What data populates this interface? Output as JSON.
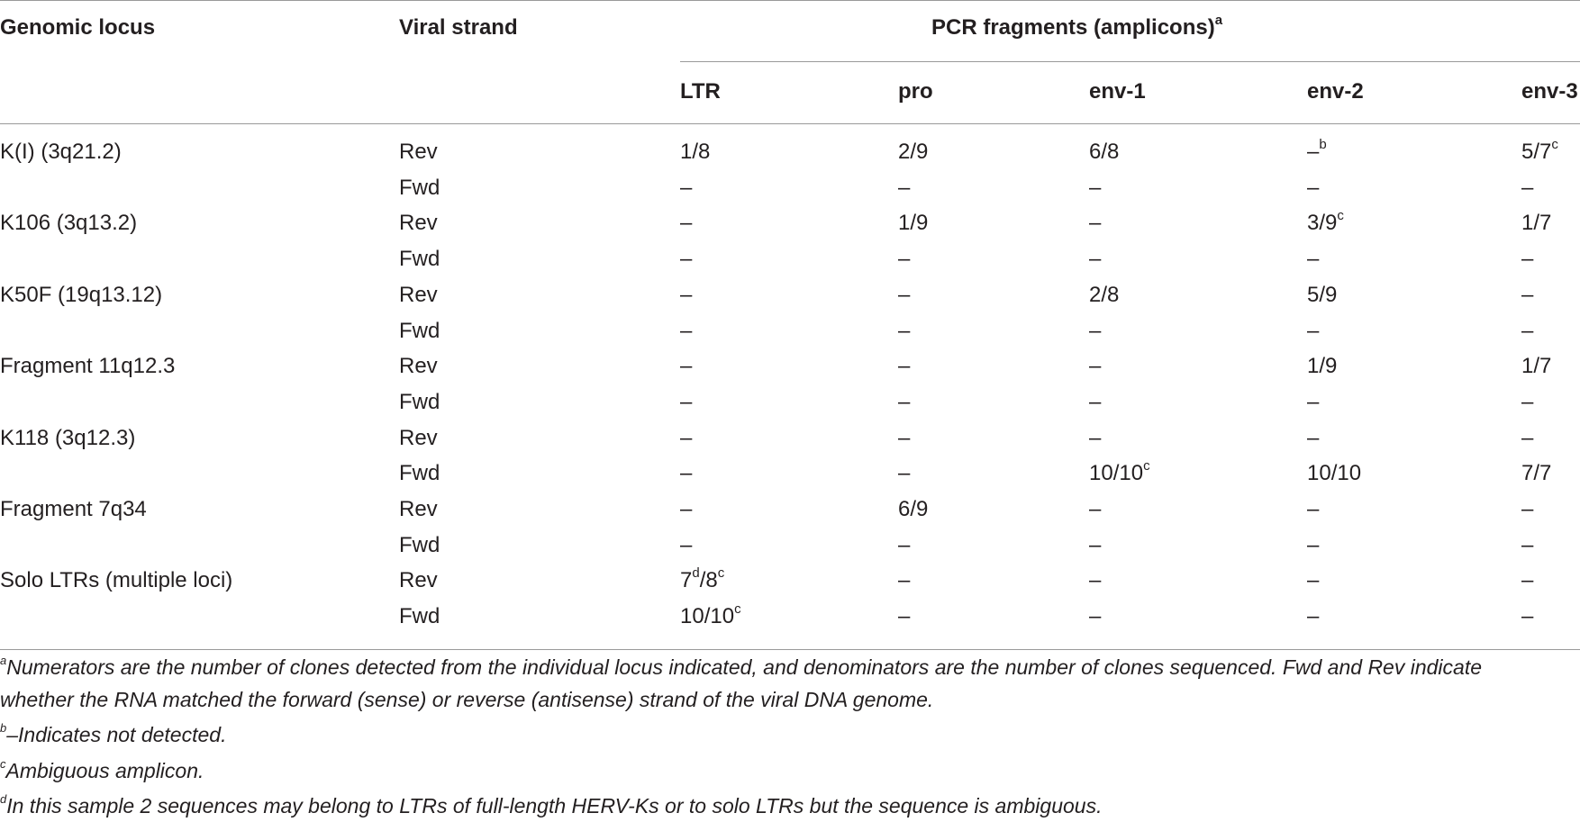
{
  "header": {
    "col_locus": "Genomic locus",
    "col_strand": "Viral strand",
    "group_title": "PCR fragments (amplicons)",
    "group_title_sup": "a",
    "sub_cols": [
      "LTR",
      "pro",
      "env-1",
      "env-2",
      "env-3"
    ]
  },
  "rows": [
    {
      "locus": "K(I) (3q21.2)",
      "strand": "Rev",
      "cells": [
        {
          "v": "1/8",
          "s": ""
        },
        {
          "v": "2/9",
          "s": ""
        },
        {
          "v": "6/8",
          "s": ""
        },
        {
          "v": "–",
          "s": "b"
        },
        {
          "v": "5/7",
          "s": "c"
        }
      ]
    },
    {
      "locus": "",
      "strand": "Fwd",
      "cells": [
        {
          "v": "–",
          "s": ""
        },
        {
          "v": "–",
          "s": ""
        },
        {
          "v": "–",
          "s": ""
        },
        {
          "v": "–",
          "s": ""
        },
        {
          "v": "–",
          "s": ""
        }
      ]
    },
    {
      "locus": "K106 (3q13.2)",
      "strand": "Rev",
      "cells": [
        {
          "v": "–",
          "s": ""
        },
        {
          "v": "1/9",
          "s": ""
        },
        {
          "v": "–",
          "s": ""
        },
        {
          "v": "3/9",
          "s": "c"
        },
        {
          "v": "1/7",
          "s": ""
        }
      ]
    },
    {
      "locus": "",
      "strand": "Fwd",
      "cells": [
        {
          "v": "–",
          "s": ""
        },
        {
          "v": "–",
          "s": ""
        },
        {
          "v": "–",
          "s": ""
        },
        {
          "v": "–",
          "s": ""
        },
        {
          "v": "–",
          "s": ""
        }
      ]
    },
    {
      "locus": "K50F (19q13.12)",
      "strand": "Rev",
      "cells": [
        {
          "v": "–",
          "s": ""
        },
        {
          "v": "–",
          "s": ""
        },
        {
          "v": "2/8",
          "s": ""
        },
        {
          "v": "5/9",
          "s": ""
        },
        {
          "v": "–",
          "s": ""
        }
      ]
    },
    {
      "locus": "",
      "strand": "Fwd",
      "cells": [
        {
          "v": "–",
          "s": ""
        },
        {
          "v": "–",
          "s": ""
        },
        {
          "v": "–",
          "s": ""
        },
        {
          "v": "–",
          "s": ""
        },
        {
          "v": "–",
          "s": ""
        }
      ]
    },
    {
      "locus": "Fragment 11q12.3",
      "strand": "Rev",
      "cells": [
        {
          "v": "–",
          "s": ""
        },
        {
          "v": "–",
          "s": ""
        },
        {
          "v": "–",
          "s": ""
        },
        {
          "v": "1/9",
          "s": ""
        },
        {
          "v": "1/7",
          "s": ""
        }
      ]
    },
    {
      "locus": "",
      "strand": "Fwd",
      "cells": [
        {
          "v": "–",
          "s": ""
        },
        {
          "v": "–",
          "s": ""
        },
        {
          "v": "–",
          "s": ""
        },
        {
          "v": "–",
          "s": ""
        },
        {
          "v": "–",
          "s": ""
        }
      ]
    },
    {
      "locus": "K118 (3q12.3)",
      "strand": "Rev",
      "cells": [
        {
          "v": "–",
          "s": ""
        },
        {
          "v": "–",
          "s": ""
        },
        {
          "v": "–",
          "s": ""
        },
        {
          "v": "–",
          "s": ""
        },
        {
          "v": "–",
          "s": ""
        }
      ]
    },
    {
      "locus": "",
      "strand": "Fwd",
      "cells": [
        {
          "v": "–",
          "s": ""
        },
        {
          "v": "–",
          "s": ""
        },
        {
          "v": "10/10",
          "s": "c"
        },
        {
          "v": "10/10",
          "s": ""
        },
        {
          "v": "7/7",
          "s": ""
        }
      ]
    },
    {
      "locus": "Fragment 7q34",
      "strand": "Rev",
      "cells": [
        {
          "v": "–",
          "s": ""
        },
        {
          "v": "6/9",
          "s": ""
        },
        {
          "v": "–",
          "s": ""
        },
        {
          "v": "–",
          "s": ""
        },
        {
          "v": "–",
          "s": ""
        }
      ]
    },
    {
      "locus": "",
      "strand": "Fwd",
      "cells": [
        {
          "v": "–",
          "s": ""
        },
        {
          "v": "–",
          "s": ""
        },
        {
          "v": "–",
          "s": ""
        },
        {
          "v": "–",
          "s": ""
        },
        {
          "v": "–",
          "s": ""
        }
      ]
    },
    {
      "locus": "Solo LTRs (multiple loci)",
      "strand": "Rev",
      "cells": [
        {
          "v": "7",
          "s": "d",
          "v2": "/8",
          "s2": "c"
        },
        {
          "v": "–",
          "s": ""
        },
        {
          "v": "–",
          "s": ""
        },
        {
          "v": "–",
          "s": ""
        },
        {
          "v": "–",
          "s": ""
        }
      ]
    },
    {
      "locus": "",
      "strand": "Fwd",
      "cells": [
        {
          "v": "10/10",
          "s": "c"
        },
        {
          "v": "–",
          "s": ""
        },
        {
          "v": "–",
          "s": ""
        },
        {
          "v": "–",
          "s": ""
        },
        {
          "v": "–",
          "s": ""
        }
      ]
    }
  ],
  "footnotes": [
    {
      "mark": "a",
      "text": "Numerators are the number of clones detected from the individual locus indicated, and denominators are the number of clones sequenced. Fwd and Rev indicate"
    },
    {
      "mark": "",
      "text": "whether the RNA matched the forward (sense) or reverse (antisense) strand of the viral DNA genome."
    },
    {
      "mark": "b",
      "text": "–Indicates not detected."
    },
    {
      "mark": "c",
      "text": "Ambiguous amplicon."
    },
    {
      "mark": "d",
      "text": "In this sample 2 sequences may belong to LTRs of full-length HERV-Ks or to solo LTRs but the sequence is ambiguous."
    }
  ]
}
